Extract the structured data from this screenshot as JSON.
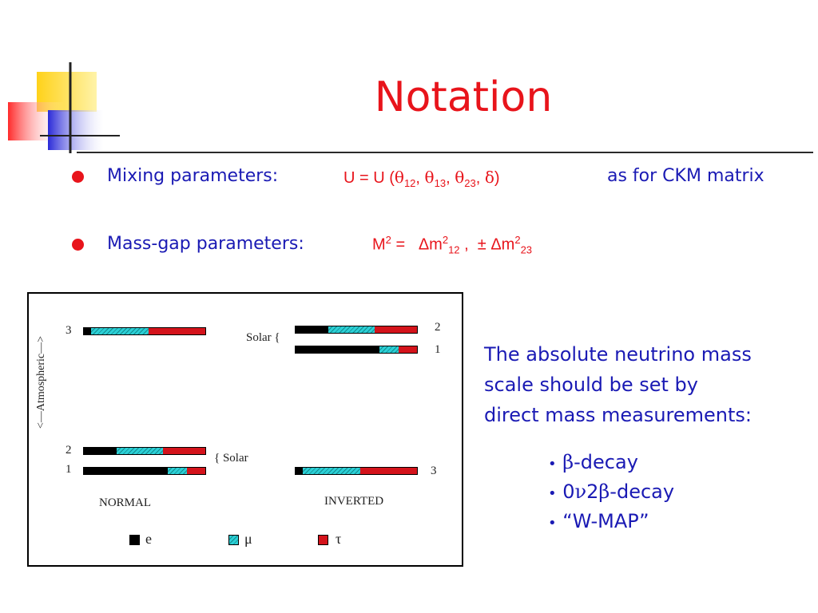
{
  "title": "Notation",
  "bullets": [
    {
      "label": "Mixing parameters:",
      "formula": {
        "lhs": "U = U (",
        "t1": "θ",
        "t1s": "12",
        "sep1": ", ",
        "t2": "θ",
        "t2s": "13",
        "sep2": ", ",
        "t3": "θ",
        "t3s": "23",
        "sep3": ", ",
        "d": "δ",
        "close": ")"
      },
      "note": "as for CKM matrix"
    },
    {
      "label": "Mass-gap parameters:",
      "formula": {
        "lhs": "M",
        "lhs_sup": "2",
        "eq": " =   ",
        "d1": "Δm",
        "d1_sup": "2",
        "d1_sub": "12",
        "mid": " ,  ± ",
        "d2": "Δm",
        "d2_sup": "2",
        "d2_sub": "23"
      }
    }
  ],
  "diagram": {
    "atmospheric_label": "<—Atmospheric—>",
    "normal": {
      "caption": "NORMAL",
      "solar_label": "{ Solar",
      "levels": [
        {
          "num": "3",
          "e": 0.06,
          "mu": 0.47,
          "tau": 0.47
        },
        {
          "num": "2",
          "e": 0.27,
          "mu": 0.38,
          "tau": 0.35
        },
        {
          "num": "1",
          "e": 0.69,
          "mu": 0.16,
          "tau": 0.15
        }
      ]
    },
    "inverted": {
      "caption": "INVERTED",
      "solar_label": "Solar  {",
      "levels": [
        {
          "num": "2",
          "e": 0.27,
          "mu": 0.38,
          "tau": 0.35
        },
        {
          "num": "1",
          "e": 0.69,
          "mu": 0.16,
          "tau": 0.15
        },
        {
          "num": "3",
          "e": 0.06,
          "mu": 0.47,
          "tau": 0.47
        }
      ]
    },
    "legend": [
      {
        "name": "e",
        "color": "#000000"
      },
      {
        "name": "μ",
        "color": "#2bd0d6"
      },
      {
        "name": "τ",
        "color": "#d4131b"
      }
    ]
  },
  "right_text": {
    "lines": [
      "The absolute neutrino mass",
      "scale should be set by",
      "direct mass measurements:"
    ],
    "items": [
      {
        "bullet": "•",
        "sym": "β",
        "rest": "-decay"
      },
      {
        "bullet": "•",
        "pre": "0",
        "sym1": "ν",
        "mid": "2",
        "sym2": "β",
        "rest": "-decay"
      },
      {
        "bullet": "•",
        "text": "“W-MAP”"
      }
    ]
  }
}
